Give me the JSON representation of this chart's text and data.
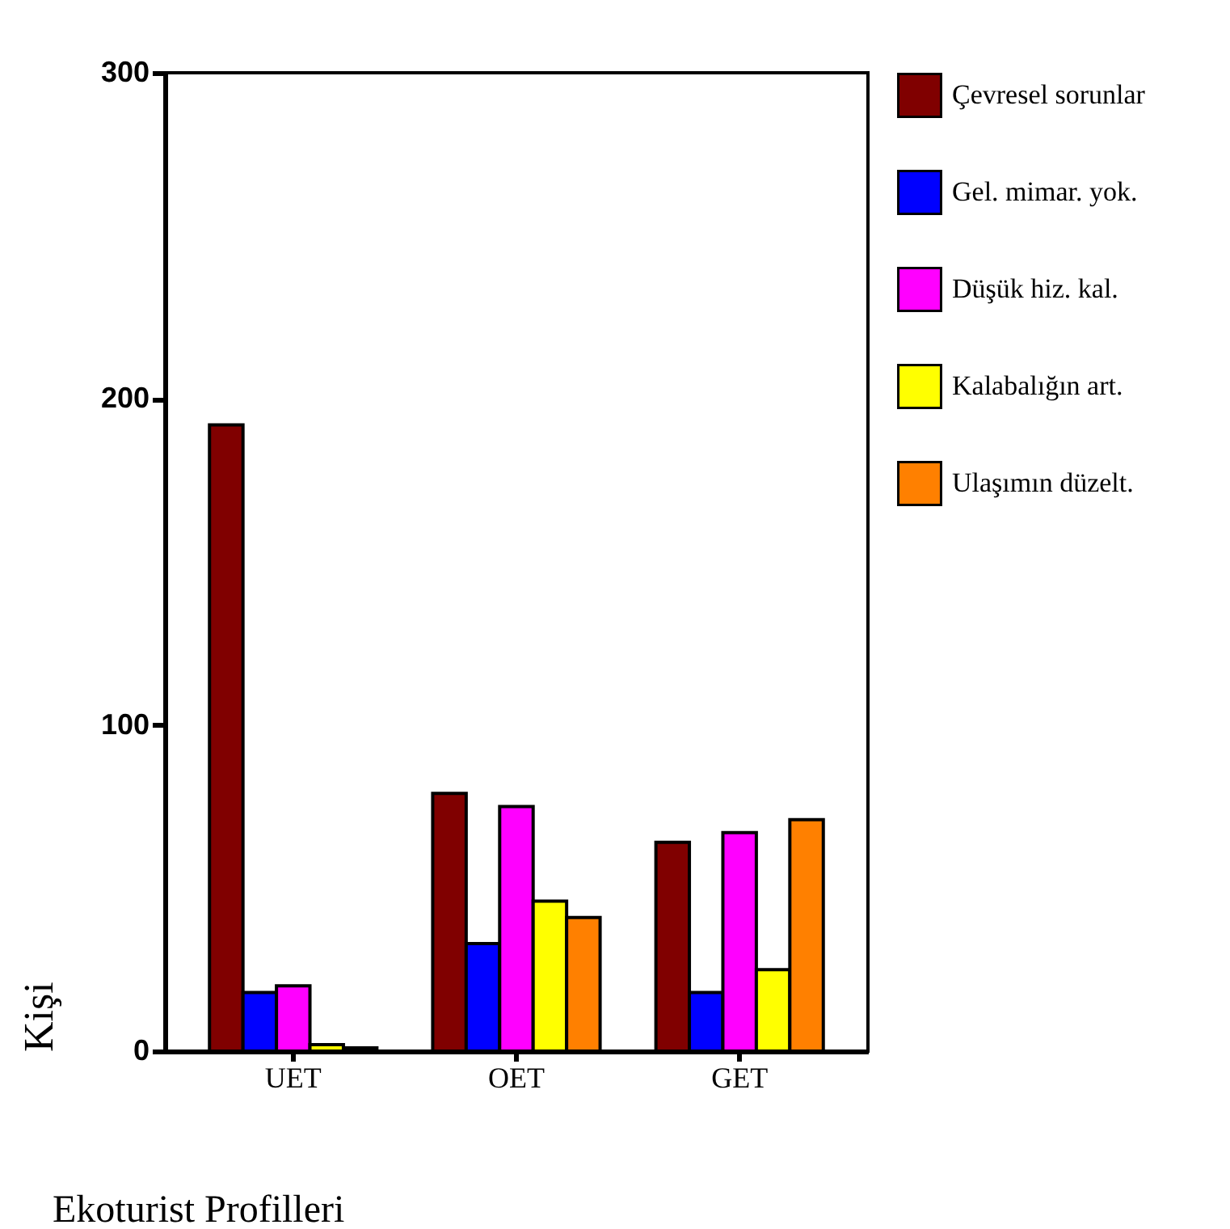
{
  "chart_data": {
    "type": "bar",
    "xlabel": "Ekoturist Profilleri",
    "ylabel": "Kişi",
    "categories": [
      "UET",
      "OET",
      "GET"
    ],
    "series": [
      {
        "name": "Çevresel sorunlar",
        "color": "#800000",
        "values": [
          192,
          79,
          64
        ]
      },
      {
        "name": "Gel. mimar. yok.",
        "color": "#0000ff",
        "values": [
          18,
          33,
          18
        ]
      },
      {
        "name": "Düşük hiz. kal.",
        "color": "#ff00ff",
        "values": [
          20,
          75,
          67
        ]
      },
      {
        "name": "Kalabalığın art.",
        "color": "#ffff00",
        "values": [
          2,
          46,
          25
        ]
      },
      {
        "name": "Ulaşımın düzelt.",
        "color": "#ff8000",
        "values": [
          1,
          41,
          71
        ]
      }
    ],
    "ylim": [
      0,
      300
    ],
    "yticks": [
      0,
      100,
      200,
      300
    ],
    "grid": false,
    "legend": "right"
  }
}
